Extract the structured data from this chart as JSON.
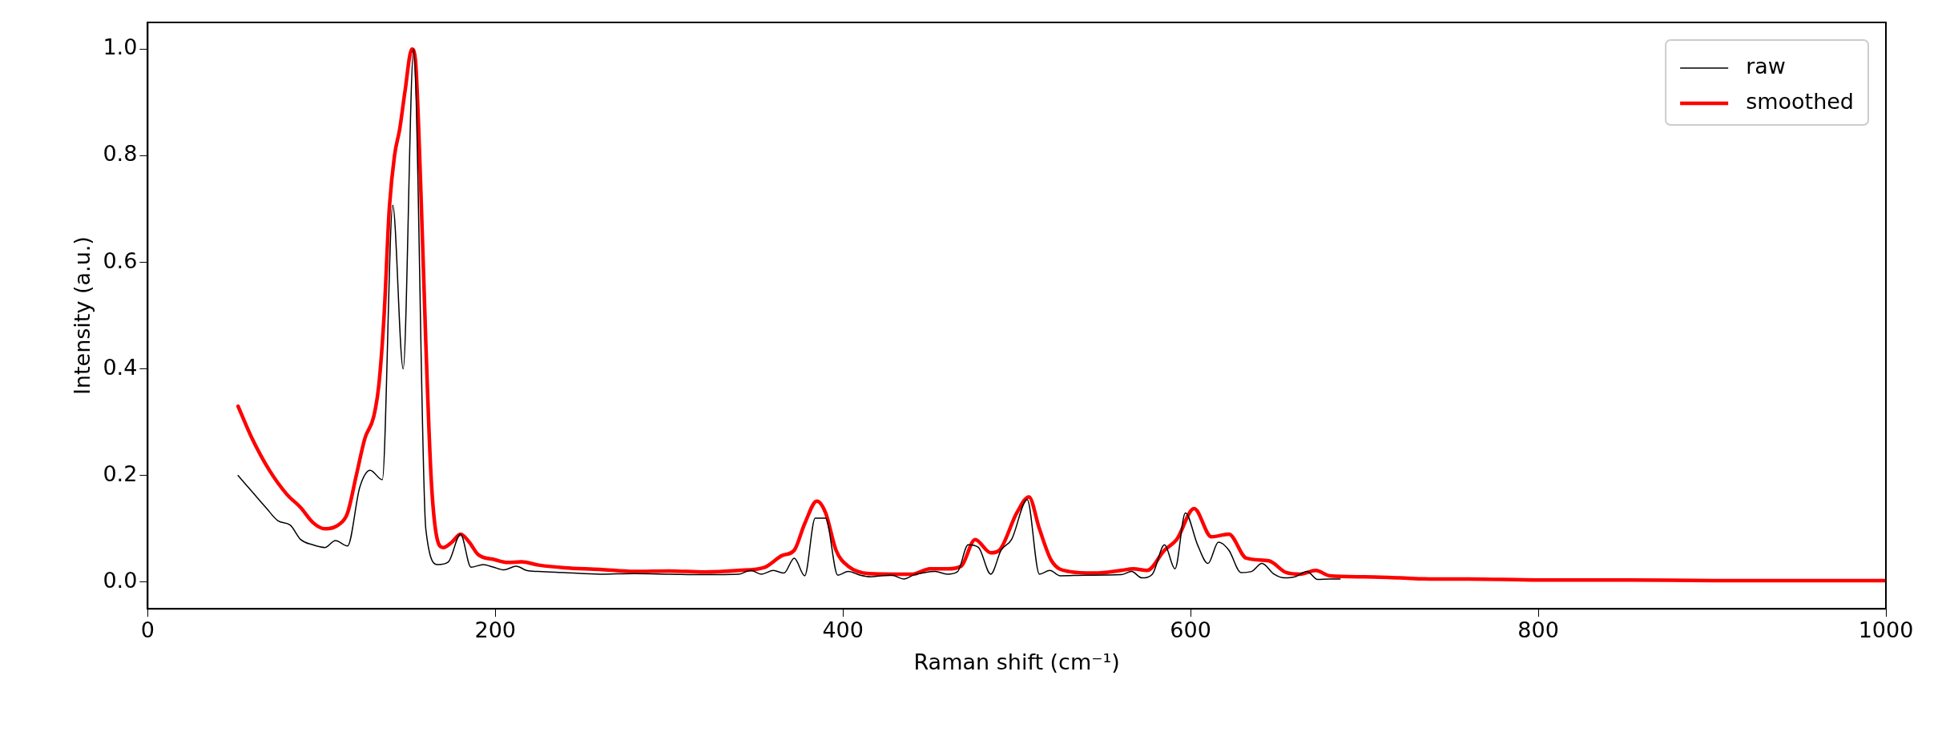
{
  "chart_data": {
    "type": "line",
    "xlabel": "Raman shift (cm⁻¹)",
    "ylabel": "Intensity (a.u.)",
    "xlim": [
      0,
      1000
    ],
    "ylim": [
      -0.05,
      1.05
    ],
    "xticks": [
      0,
      200,
      400,
      600,
      800,
      1000
    ],
    "yticks": [
      {
        "value": 0,
        "label": "0.0"
      },
      {
        "value": 0.2,
        "label": "0.2"
      },
      {
        "value": 0.4,
        "label": "0.4"
      },
      {
        "value": 0.6,
        "label": "0.6"
      },
      {
        "value": 0.8,
        "label": "0.8"
      },
      {
        "value": 1,
        "label": "1.0"
      }
    ],
    "grid": false,
    "legend": "top right",
    "marker": "none",
    "line_style": "solid",
    "series": [
      {
        "name": "raw",
        "color": "#000000",
        "x": [
          52,
          60,
          68,
          75,
          82,
          88,
          95,
          102,
          108,
          115,
          122,
          128,
          135,
          141,
          147,
          153,
          160,
          167,
          173,
          180,
          186,
          193,
          199,
          205,
          212,
          218,
          225,
          240,
          260,
          280,
          300,
          320,
          340,
          347,
          353,
          360,
          366,
          372,
          378,
          384,
          390,
          397,
          403,
          410,
          416,
          422,
          428,
          435,
          441,
          447,
          453,
          460,
          466,
          472,
          478,
          485,
          491,
          497,
          506,
          513,
          519,
          525,
          540,
          560,
          566,
          572,
          578,
          585,
          591,
          597,
          604,
          610,
          616,
          622,
          629,
          635,
          641,
          648,
          654,
          660,
          667,
          673,
          680,
          686
        ],
        "values": [
          0.2,
          0.17,
          0.14,
          0.115,
          0.107,
          0.08,
          0.07,
          0.065,
          0.078,
          0.068,
          0.178,
          0.21,
          0.192,
          0.707,
          0.4,
          1.0,
          0.1,
          0.033,
          0.038,
          0.09,
          0.028,
          0.033,
          0.028,
          0.023,
          0.03,
          0.022,
          0.02,
          0.018,
          0.015,
          0.016,
          0.015,
          0.014,
          0.015,
          0.022,
          0.015,
          0.022,
          0.017,
          0.045,
          0.012,
          0.12,
          0.12,
          0.013,
          0.02,
          0.013,
          0.01,
          0.012,
          0.013,
          0.006,
          0.014,
          0.018,
          0.02,
          0.015,
          0.02,
          0.07,
          0.065,
          0.015,
          0.06,
          0.08,
          0.155,
          0.015,
          0.022,
          0.012,
          0.013,
          0.014,
          0.02,
          0.008,
          0.015,
          0.07,
          0.025,
          0.13,
          0.07,
          0.035,
          0.075,
          0.06,
          0.018,
          0.02,
          0.035,
          0.015,
          0.008,
          0.01,
          0.02,
          0.005,
          0.006,
          0.006
        ]
      },
      {
        "name": "smoothed",
        "color": "#ff0000",
        "x": [
          52,
          60,
          70,
          80,
          88,
          95,
          102,
          110,
          115,
          120,
          125,
          130,
          133,
          136,
          139,
          142,
          145,
          148,
          152,
          154,
          157,
          160,
          163,
          166,
          170,
          175,
          180,
          185,
          190,
          200,
          207,
          215,
          225,
          240,
          260,
          280,
          300,
          320,
          340,
          355,
          365,
          372,
          378,
          385,
          390,
          396,
          403,
          415,
          430,
          440,
          450,
          460,
          468,
          476,
          485,
          490,
          500,
          507,
          513,
          520,
          530,
          545,
          560,
          567,
          575,
          585,
          592,
          602,
          612,
          622,
          632,
          645,
          655,
          663,
          672,
          680,
          700,
          720,
          740,
          760,
          800,
          850,
          900,
          1000
        ],
        "values": [
          0.33,
          0.27,
          0.21,
          0.165,
          0.14,
          0.112,
          0.1,
          0.108,
          0.13,
          0.2,
          0.27,
          0.31,
          0.37,
          0.5,
          0.7,
          0.8,
          0.85,
          0.92,
          1.0,
          0.98,
          0.75,
          0.45,
          0.2,
          0.09,
          0.065,
          0.075,
          0.09,
          0.075,
          0.052,
          0.042,
          0.037,
          0.038,
          0.032,
          0.027,
          0.024,
          0.02,
          0.021,
          0.019,
          0.022,
          0.028,
          0.05,
          0.06,
          0.11,
          0.152,
          0.13,
          0.06,
          0.03,
          0.016,
          0.015,
          0.015,
          0.025,
          0.025,
          0.03,
          0.08,
          0.055,
          0.06,
          0.13,
          0.16,
          0.1,
          0.04,
          0.02,
          0.017,
          0.022,
          0.025,
          0.022,
          0.06,
          0.08,
          0.138,
          0.085,
          0.09,
          0.045,
          0.04,
          0.018,
          0.015,
          0.022,
          0.012,
          0.01,
          0.008,
          0.006,
          0.006,
          0.004,
          0.004,
          0.003,
          0.003
        ]
      }
    ]
  }
}
